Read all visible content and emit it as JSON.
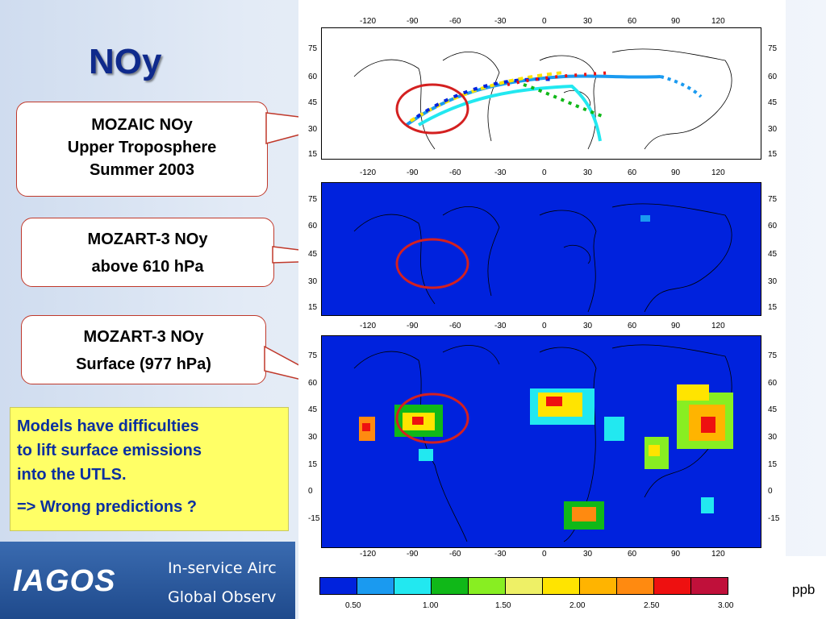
{
  "slide": {
    "title": "NOy"
  },
  "callouts": [
    {
      "lines": [
        "MOZAIC   NOy",
        "Upper Troposphere",
        "Summer 2003"
      ]
    },
    {
      "lines": [
        "MOZART-3   NOy",
        "above 610 hPa"
      ]
    },
    {
      "lines": [
        "MOZART-3  NOy",
        "Surface (977 hPa)"
      ]
    }
  ],
  "note": {
    "lines": [
      "Models have difficulties",
      "to lift surface emissions",
      "into the UTLS.",
      "=> Wrong predictions ?"
    ]
  },
  "maps": {
    "lon_ticks": [
      "-120",
      "-90",
      "-60",
      "-30",
      "0",
      "30",
      "60",
      "90",
      "120"
    ],
    "lat_ticks_small": [
      "75",
      "60",
      "45",
      "30",
      "15"
    ],
    "lat_ticks_large": [
      "75",
      "60",
      "45",
      "30",
      "15",
      "0",
      "-15"
    ]
  },
  "colorbar": {
    "colors": [
      "#0022dd",
      "#1a9af0",
      "#22e8f0",
      "#10b818",
      "#88ee22",
      "#eef066",
      "#ffe400",
      "#ffb400",
      "#ff8a10",
      "#ee1010",
      "#c0103a"
    ],
    "labels": [
      "0.50",
      "1.00",
      "1.50",
      "2.00",
      "2.50",
      "3.00"
    ],
    "unit": "ppb"
  },
  "footer": {
    "logo": "IAGOS",
    "line1": "In-service Airc",
    "line2": "Global Observ"
  },
  "colors": {
    "title": "#0f2a8c",
    "callout_border": "#c0392b",
    "note_bg": "#ffff66",
    "note_text": "#0a2fa0",
    "map_ocean": "#0022dd",
    "highlight_circle": "#d42020"
  }
}
